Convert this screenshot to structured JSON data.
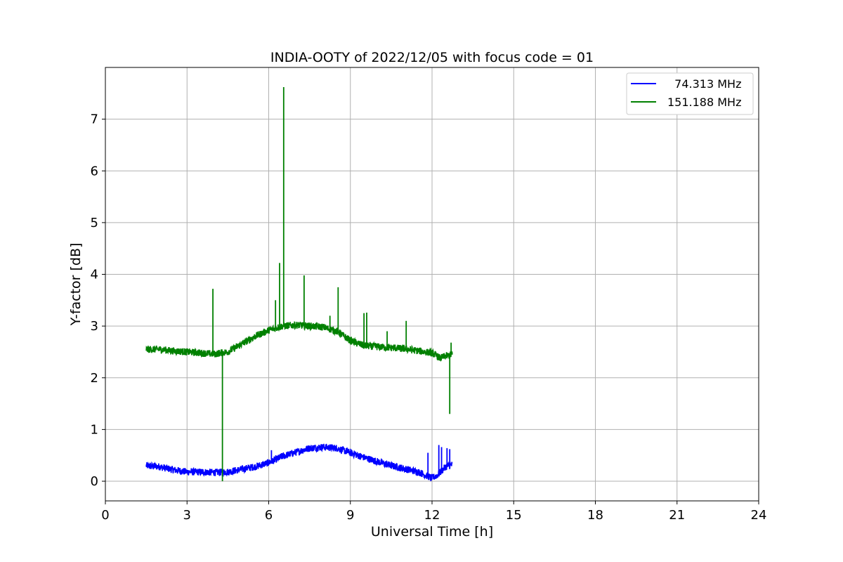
{
  "chart_data": {
    "type": "line",
    "title": "INDIA-OOTY of 2022/12/05 with focus code = 01",
    "xlabel": "Universal Time [h]",
    "ylabel": "Y-factor [dB]",
    "xlim": [
      0,
      24
    ],
    "ylim": [
      -0.38,
      8.0
    ],
    "xticks": [
      0,
      3,
      6,
      9,
      12,
      15,
      18,
      21,
      24
    ],
    "yticks": [
      0,
      1,
      2,
      3,
      4,
      5,
      6,
      7
    ],
    "grid": true,
    "legend_position": "top-right",
    "series": [
      {
        "name": "  74.313 MHz",
        "color": "#0000ff",
        "x": [
          1.5,
          2.0,
          2.5,
          3.0,
          3.5,
          4.0,
          4.5,
          5.0,
          5.5,
          6.0,
          6.5,
          7.0,
          7.5,
          8.0,
          8.5,
          9.0,
          9.5,
          10.0,
          10.5,
          11.0,
          11.5,
          12.0,
          12.2,
          12.5,
          12.75
        ],
        "y": [
          0.3,
          0.28,
          0.22,
          0.18,
          0.18,
          0.17,
          0.18,
          0.23,
          0.28,
          0.36,
          0.48,
          0.56,
          0.64,
          0.66,
          0.64,
          0.55,
          0.46,
          0.38,
          0.3,
          0.24,
          0.18,
          0.06,
          0.12,
          0.28,
          0.32
        ],
        "spikes": [
          {
            "x": 6.1,
            "y": 0.6
          },
          {
            "x": 11.85,
            "y": 0.55
          },
          {
            "x": 12.25,
            "y": 0.7
          },
          {
            "x": 12.35,
            "y": 0.66
          },
          {
            "x": 12.55,
            "y": 0.64
          },
          {
            "x": 12.65,
            "y": 0.62
          }
        ]
      },
      {
        "name": "151.188 MHz",
        "color": "#008000",
        "x": [
          1.5,
          2.0,
          2.5,
          3.0,
          3.5,
          4.0,
          4.5,
          5.0,
          5.5,
          6.0,
          6.5,
          7.0,
          7.5,
          8.0,
          8.5,
          9.0,
          9.5,
          10.0,
          10.5,
          11.0,
          11.5,
          12.0,
          12.3,
          12.5,
          12.75
        ],
        "y": [
          2.55,
          2.55,
          2.52,
          2.5,
          2.48,
          2.46,
          2.5,
          2.65,
          2.8,
          2.92,
          3.0,
          3.02,
          3.0,
          2.98,
          2.9,
          2.72,
          2.62,
          2.6,
          2.58,
          2.56,
          2.52,
          2.48,
          2.38,
          2.42,
          2.45
        ],
        "spikes": [
          {
            "x": 3.95,
            "y": 3.72
          },
          {
            "x": 4.3,
            "y": 0.0
          },
          {
            "x": 6.25,
            "y": 3.5
          },
          {
            "x": 6.4,
            "y": 4.22
          },
          {
            "x": 6.55,
            "y": 7.62
          },
          {
            "x": 7.3,
            "y": 3.98
          },
          {
            "x": 8.25,
            "y": 3.2
          },
          {
            "x": 8.55,
            "y": 3.75
          },
          {
            "x": 9.5,
            "y": 3.25
          },
          {
            "x": 9.6,
            "y": 3.26
          },
          {
            "x": 10.35,
            "y": 2.9
          },
          {
            "x": 11.05,
            "y": 3.1
          },
          {
            "x": 12.65,
            "y": 1.3
          },
          {
            "x": 12.7,
            "y": 2.68
          }
        ]
      }
    ]
  }
}
